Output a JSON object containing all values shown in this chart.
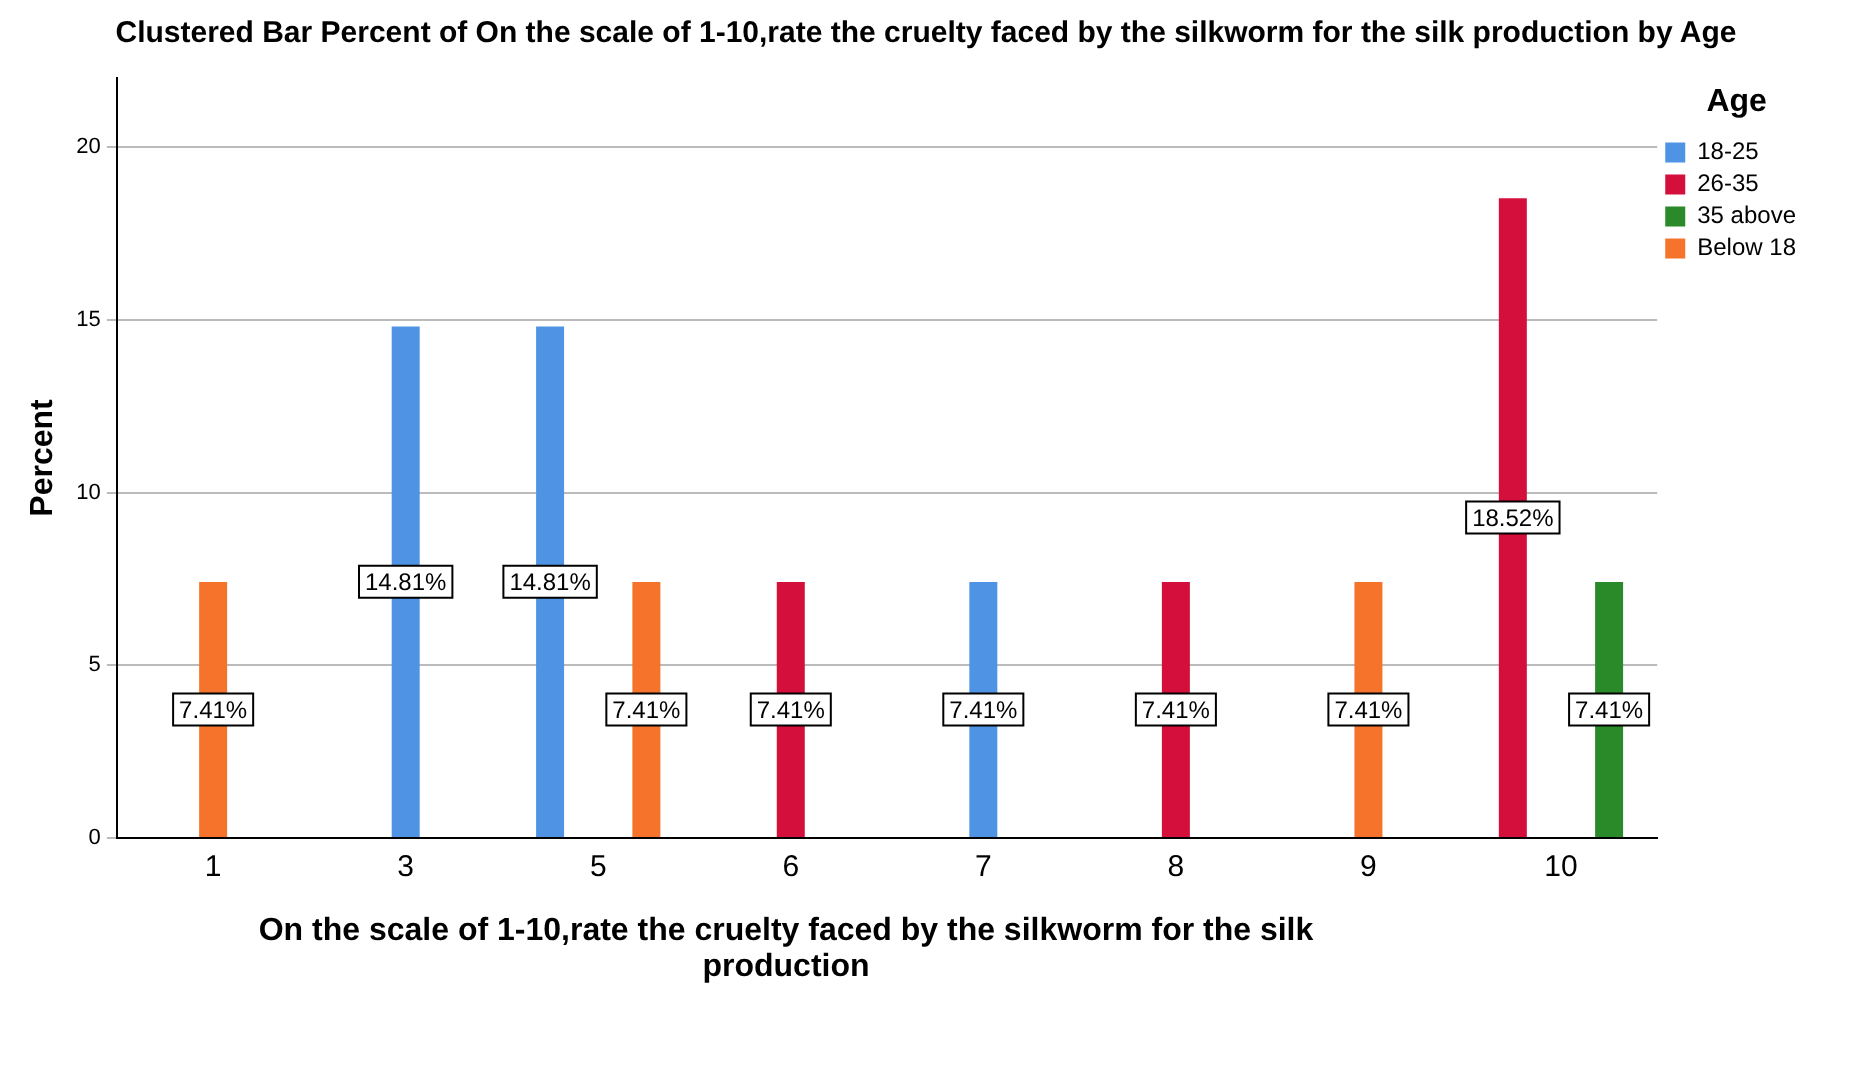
{
  "chart_data": {
    "type": "bar",
    "title": "Clustered Bar Percent of On the scale of 1-10,rate the cruelty faced by the silkworm for the silk production  by Age",
    "xlabel": "On the scale of 1-10,rate the cruelty faced by the silkworm for the silk production",
    "ylabel": "Percent",
    "legend_title": "Age",
    "categories": [
      "1",
      "3",
      "5",
      "6",
      "7",
      "8",
      "9",
      "10"
    ],
    "series": [
      {
        "name": "18-25",
        "color": "#4f94e4",
        "values": [
          null,
          14.81,
          14.81,
          null,
          7.41,
          null,
          null,
          null
        ],
        "value_labels": [
          null,
          "14.81%",
          "14.81%",
          null,
          "7.41%",
          null,
          null,
          null
        ]
      },
      {
        "name": "26-35",
        "color": "#d40f3c",
        "values": [
          null,
          null,
          null,
          7.41,
          null,
          7.41,
          null,
          18.52
        ],
        "value_labels": [
          null,
          null,
          null,
          "7.41%",
          null,
          "7.41%",
          null,
          "18.52%"
        ]
      },
      {
        "name": "35 above",
        "color": "#2a8a2a",
        "values": [
          null,
          null,
          null,
          null,
          null,
          null,
          null,
          7.41
        ],
        "value_labels": [
          null,
          null,
          null,
          null,
          null,
          null,
          null,
          "7.41%"
        ]
      },
      {
        "name": "Below 18",
        "color": "#f5732a",
        "values": [
          7.41,
          null,
          7.41,
          null,
          null,
          null,
          7.41,
          null
        ],
        "value_labels": [
          "7.41%",
          null,
          "7.41%",
          null,
          null,
          null,
          "7.41%",
          null
        ]
      }
    ],
    "ylim": [
      0,
      22
    ],
    "yticks": [
      0,
      5,
      10,
      15,
      20
    ],
    "grid": "y",
    "legend": "top right"
  }
}
